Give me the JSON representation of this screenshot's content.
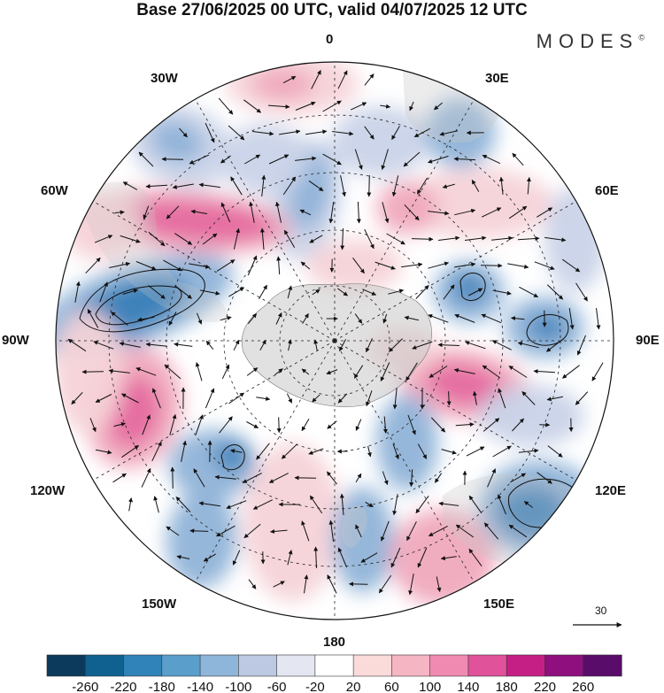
{
  "title": "Base 27/06/2025 00 UTC, valid 04/07/2025 12 UTC",
  "brand": "MODES",
  "brand_mark": "©",
  "longitude_labels": {
    "top": "0",
    "bottom": "180",
    "left": "90W",
    "right": "90E",
    "w30": "30W",
    "w60": "60W",
    "w120": "120W",
    "w150": "150W",
    "e30": "30E",
    "e60": "60E",
    "e120": "120E",
    "e150": "150E"
  },
  "wind_scale_label": "30",
  "colorbar": {
    "ticks": [
      "-260",
      "-220",
      "-180",
      "-140",
      "-100",
      "-60",
      "-20",
      "20",
      "60",
      "100",
      "140",
      "180",
      "220",
      "260"
    ],
    "colors": [
      "#0b3a5c",
      "#10618f",
      "#2f83b8",
      "#5a9fcc",
      "#8eb6da",
      "#bdc8e2",
      "#e4e6f1",
      "#ffffff",
      "#fbdada",
      "#f6b5c2",
      "#f08ab0",
      "#e0529a",
      "#c51f86",
      "#8e0f7d",
      "#5a0c6a"
    ]
  },
  "anomaly_colors": {
    "negative_strong": "#3a7fb8",
    "negative_mid": "#8fb3d8",
    "negative_weak": "#c9d3e8",
    "positive_weak": "#f6d3d8",
    "positive_mid": "#f0a9bd",
    "positive_strong": "#e56aa0",
    "land": "#c8c8c8"
  }
}
